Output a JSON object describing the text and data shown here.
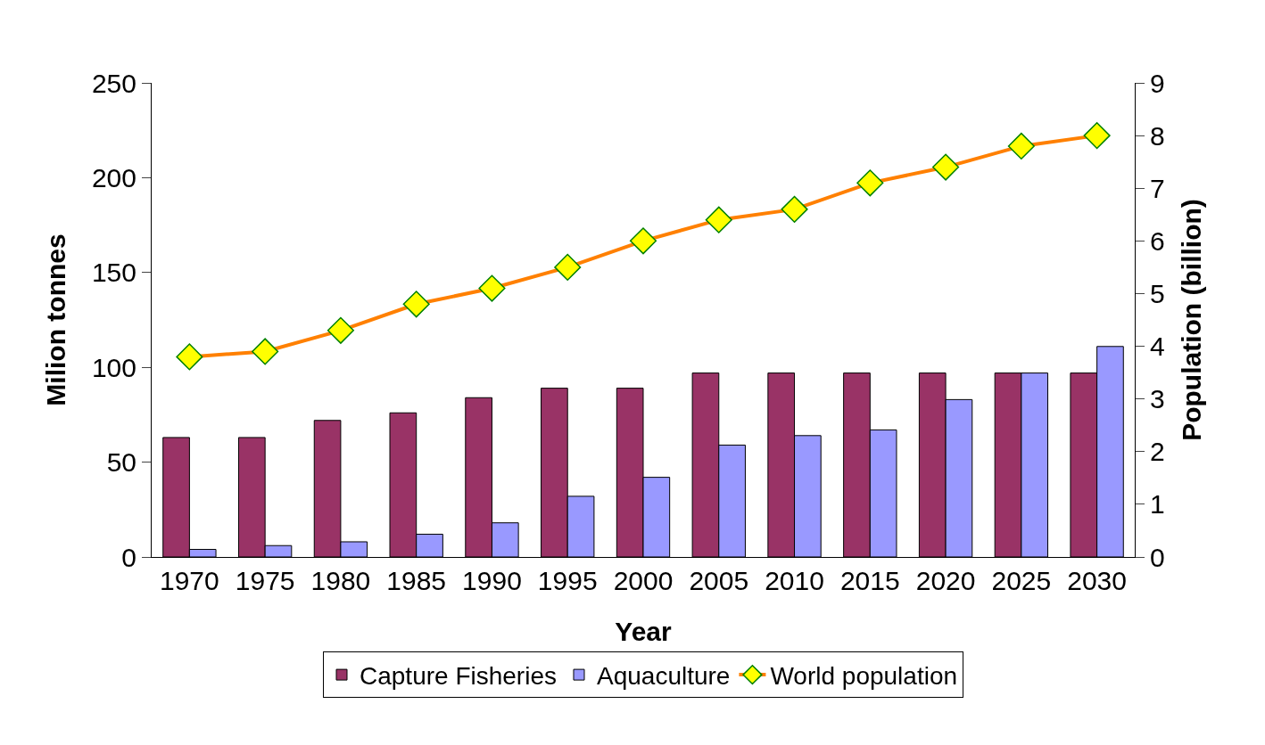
{
  "chart_data": {
    "type": "bar",
    "xlabel": "Year",
    "ylabel": "Milion tonnes",
    "y2label": "Population (billion)",
    "categories": [
      "1970",
      "1975",
      "1980",
      "1985",
      "1990",
      "1995",
      "2000",
      "2005",
      "2010",
      "2015",
      "2020",
      "2025",
      "2030"
    ],
    "series": [
      {
        "name": "Capture Fisheries",
        "color": "#993366",
        "values": [
          63,
          63,
          72,
          76,
          84,
          89,
          89,
          97,
          97,
          97,
          97,
          97,
          97
        ]
      },
      {
        "name": "Aquaculture",
        "color": "#9999ff",
        "values": [
          4,
          6,
          8,
          12,
          18,
          32,
          42,
          59,
          64,
          67,
          83,
          97,
          111
        ]
      },
      {
        "name": "World population",
        "type": "line",
        "axis": "y2",
        "color": "#ff8000",
        "marker": "diamond",
        "line_style": "solid",
        "values": [
          3.8,
          3.9,
          4.3,
          4.8,
          5.1,
          5.5,
          6.0,
          6.4,
          6.6,
          7.1,
          7.4,
          7.8,
          8.0
        ]
      }
    ],
    "ylim": [
      0,
      250
    ],
    "yticks": [
      0,
      50,
      100,
      150,
      200,
      250
    ],
    "y2lim": [
      0,
      9
    ],
    "y2ticks": [
      0,
      1,
      2,
      3,
      4,
      5,
      6,
      7,
      8,
      9
    ],
    "grid": false,
    "legend": "bottom"
  }
}
